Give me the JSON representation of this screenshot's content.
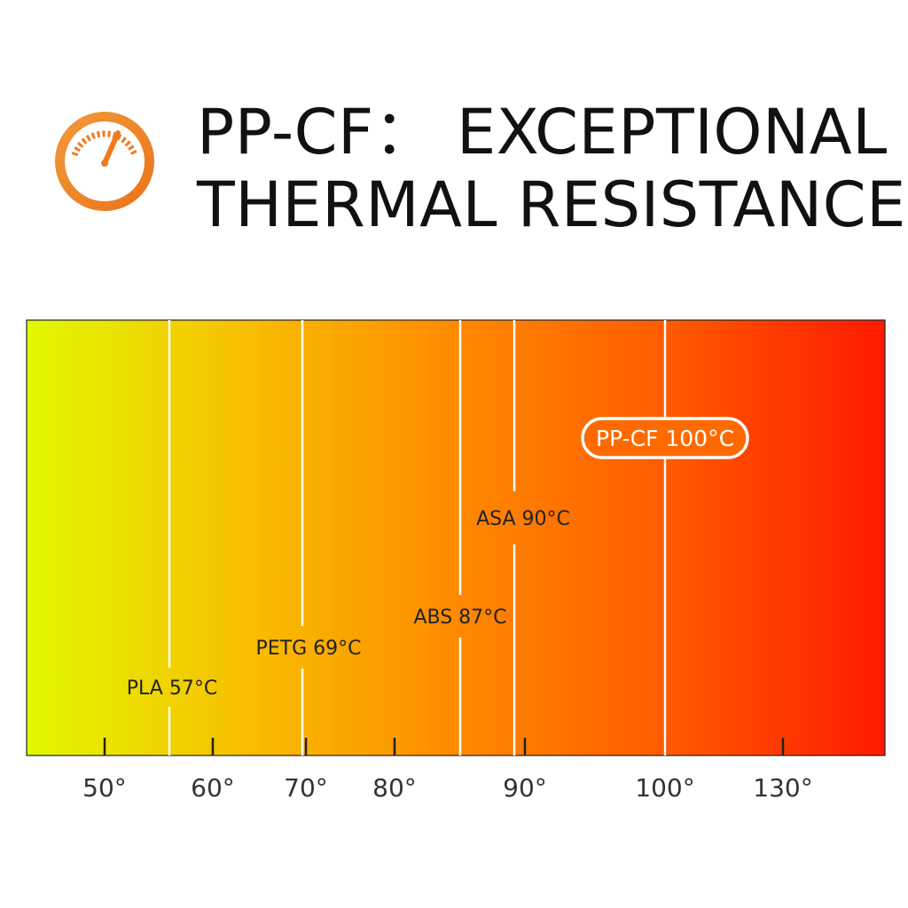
{
  "header": {
    "title_line1": "PP-CF：  EXCEPTIONAL",
    "title_line2": "THERMAL RESISTANCE",
    "icon": "gauge-icon",
    "accent_color": "#ee7b22"
  },
  "chart_data": {
    "type": "bar",
    "title": "PP-CF：  EXCEPTIONAL THERMAL RESISTANCE",
    "x_ticks": [
      "50°",
      "60°",
      "70°",
      "80°",
      "90°",
      "100°",
      "130°"
    ],
    "gradient": [
      "#e2f800",
      "#f7c000",
      "#ff8a00",
      "#ff5a00",
      "#ff1a00"
    ],
    "series": [
      {
        "name": "PLA",
        "label": "PLA 57°C",
        "value": 57
      },
      {
        "name": "PETG",
        "label": "PETG 69°C",
        "value": 69
      },
      {
        "name": "ABS",
        "label": "ABS 87°C",
        "value": 87
      },
      {
        "name": "ASA",
        "label": "ASA 90°C",
        "value": 90
      },
      {
        "name": "PP-CF",
        "label": "PP-CF 100°C",
        "value": 100,
        "highlight": true
      }
    ],
    "grid": false,
    "legend": "none"
  }
}
